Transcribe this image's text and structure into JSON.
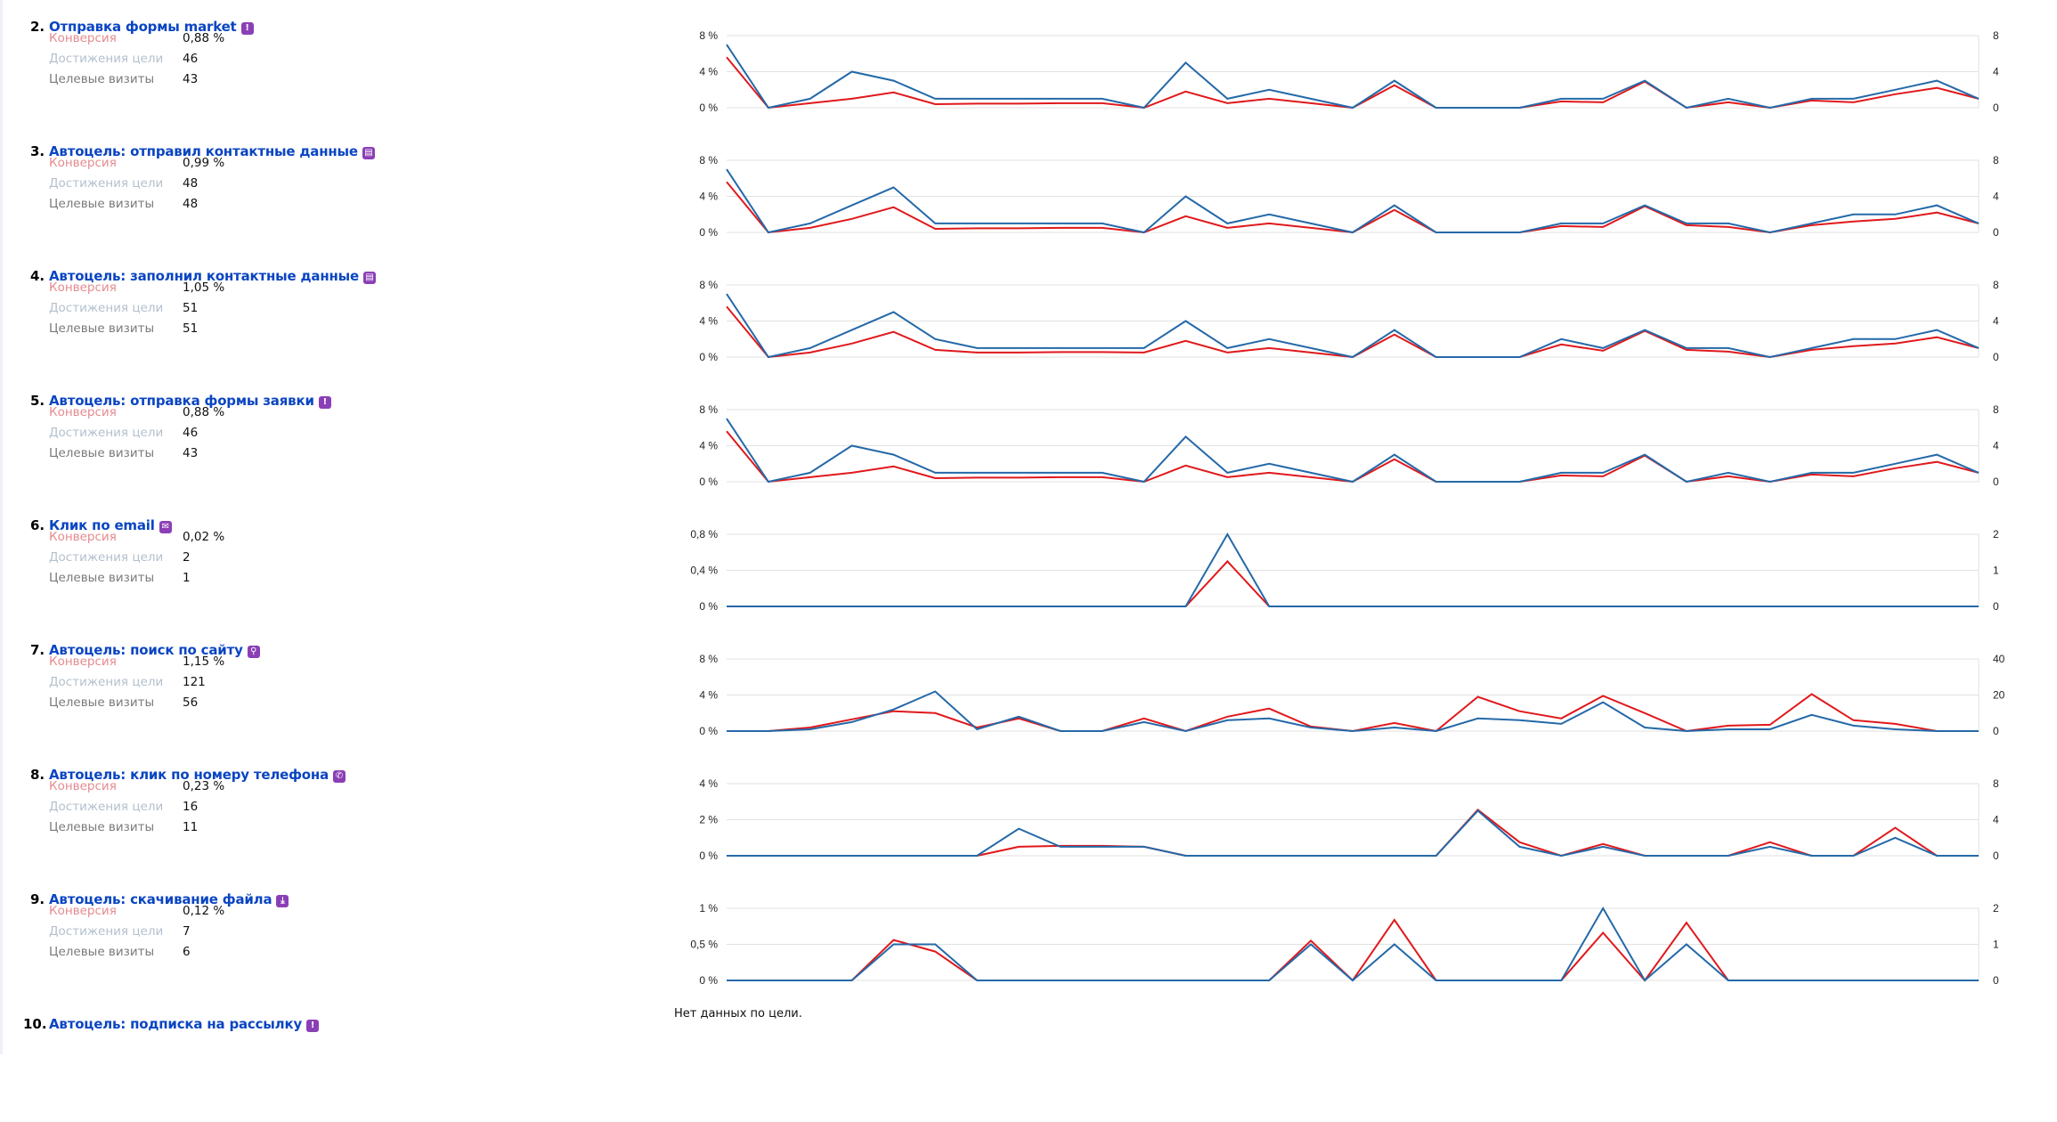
{
  "colors": {
    "title": "#0a45c2",
    "conversion_line": "#e0191c",
    "visits_line": "#2469a8",
    "icon": "#8b3fb6",
    "grid": "#e2e2e2"
  },
  "goals": [
    {
      "number": "2.",
      "title": "Отправка формы market",
      "icon": "exclamation-icon",
      "metrics": [
        {
          "label": "Конверсия",
          "value": "0,88 %"
        },
        {
          "label": "Достижения цели",
          "value": "46"
        },
        {
          "label": "Целевые визиты",
          "value": "43"
        }
      ]
    },
    {
      "number": "3.",
      "title": "Автоцель: отправил контактные данные",
      "icon": "contact-card-icon",
      "metrics": [
        {
          "label": "Конверсия",
          "value": "0,99 %"
        },
        {
          "label": "Достижения цели",
          "value": "48"
        },
        {
          "label": "Целевые визиты",
          "value": "48"
        }
      ]
    },
    {
      "number": "4.",
      "title": "Автоцель: заполнил контактные данные",
      "icon": "contact-card-icon",
      "metrics": [
        {
          "label": "Конверсия",
          "value": "1,05 %"
        },
        {
          "label": "Достижения цели",
          "value": "51"
        },
        {
          "label": "Целевые визиты",
          "value": "51"
        }
      ]
    },
    {
      "number": "5.",
      "title": "Автоцель: отправка формы заявки",
      "icon": "exclamation-icon",
      "metrics": [
        {
          "label": "Конверсия",
          "value": "0,88 %"
        },
        {
          "label": "Достижения цели",
          "value": "46"
        },
        {
          "label": "Целевые визиты",
          "value": "43"
        }
      ]
    },
    {
      "number": "6.",
      "title": "Клик по email",
      "icon": "email-icon",
      "metrics": [
        {
          "label": "Конверсия",
          "value": "0,02 %"
        },
        {
          "label": "Достижения цели",
          "value": "2"
        },
        {
          "label": "Целевые визиты",
          "value": "1"
        }
      ]
    },
    {
      "number": "7.",
      "title": "Автоцель: поиск по сайту",
      "icon": "search-icon",
      "metrics": [
        {
          "label": "Конверсия",
          "value": "1,15 %"
        },
        {
          "label": "Достижения цели",
          "value": "121"
        },
        {
          "label": "Целевые визиты",
          "value": "56"
        }
      ]
    },
    {
      "number": "8.",
      "title": "Автоцель: клик по номеру телефона",
      "icon": "phone-icon",
      "metrics": [
        {
          "label": "Конверсия",
          "value": "0,23 %"
        },
        {
          "label": "Достижения цели",
          "value": "16"
        },
        {
          "label": "Целевые визиты",
          "value": "11"
        }
      ]
    },
    {
      "number": "9.",
      "title": "Автоцель: скачивание файла",
      "icon": "download-icon",
      "metrics": [
        {
          "label": "Конверсия",
          "value": "0,12 %"
        },
        {
          "label": "Достижения цели",
          "value": "7"
        },
        {
          "label": "Целевые визиты",
          "value": "6"
        }
      ]
    },
    {
      "number": "10.",
      "title": "Автоцель: подписка на рассылку",
      "icon": "exclamation-icon",
      "metrics": [],
      "no_data": "Нет данных по цели."
    }
  ],
  "chart_data": [
    {
      "type": "line",
      "grid": true,
      "ylim_left": [
        0,
        8
      ],
      "ylim_right": [
        0,
        8
      ],
      "left_ticks": [
        "0 %",
        "4 %",
        "8 %"
      ],
      "right_ticks": [
        "0",
        "4",
        "8"
      ],
      "series": [
        {
          "axis": "left",
          "color": "#e0191c",
          "values": [
            5.6,
            0,
            0.5,
            1,
            1.7,
            0.4,
            0.45,
            0.45,
            0.5,
            0.5,
            0,
            1.8,
            0.5,
            1,
            0.5,
            0,
            2.5,
            0,
            0,
            0,
            0.7,
            0.6,
            2.9,
            0,
            0.6,
            0,
            0.8,
            0.6,
            1.5,
            2.2,
            1
          ]
        },
        {
          "axis": "right",
          "color": "#2469a8",
          "values": [
            7,
            0,
            1,
            4,
            3,
            1,
            1,
            1,
            1,
            1,
            0,
            5,
            1,
            2,
            1,
            0,
            3,
            0,
            0,
            0,
            1,
            1,
            3,
            0,
            1,
            0,
            1,
            1,
            2,
            3,
            1
          ]
        }
      ]
    },
    {
      "type": "line",
      "grid": true,
      "ylim_left": [
        0,
        8
      ],
      "ylim_right": [
        0,
        8
      ],
      "left_ticks": [
        "0 %",
        "4 %",
        "8 %"
      ],
      "right_ticks": [
        "0",
        "4",
        "8"
      ],
      "series": [
        {
          "axis": "left",
          "color": "#e0191c",
          "values": [
            5.6,
            0,
            0.5,
            1.5,
            2.8,
            0.4,
            0.45,
            0.45,
            0.5,
            0.5,
            0,
            1.8,
            0.5,
            1,
            0.5,
            0,
            2.5,
            0,
            0,
            0,
            0.7,
            0.6,
            2.9,
            0.8,
            0.6,
            0,
            0.8,
            1.2,
            1.5,
            2.2,
            1
          ]
        },
        {
          "axis": "right",
          "color": "#2469a8",
          "values": [
            7,
            0,
            1,
            3,
            5,
            1,
            1,
            1,
            1,
            1,
            0,
            4,
            1,
            2,
            1,
            0,
            3,
            0,
            0,
            0,
            1,
            1,
            3,
            1,
            1,
            0,
            1,
            2,
            2,
            3,
            1
          ]
        }
      ]
    },
    {
      "type": "line",
      "grid": true,
      "ylim_left": [
        0,
        8
      ],
      "ylim_right": [
        0,
        8
      ],
      "left_ticks": [
        "0 %",
        "4 %",
        "8 %"
      ],
      "right_ticks": [
        "0",
        "4",
        "8"
      ],
      "series": [
        {
          "axis": "left",
          "color": "#e0191c",
          "values": [
            5.6,
            0,
            0.5,
            1.5,
            2.8,
            0.8,
            0.5,
            0.5,
            0.55,
            0.55,
            0.5,
            1.8,
            0.5,
            1,
            0.5,
            0,
            2.5,
            0,
            0,
            0,
            1.4,
            0.7,
            2.9,
            0.8,
            0.6,
            0,
            0.8,
            1.2,
            1.5,
            2.2,
            1
          ]
        },
        {
          "axis": "right",
          "color": "#2469a8",
          "values": [
            7,
            0,
            1,
            3,
            5,
            2,
            1,
            1,
            1,
            1,
            1,
            4,
            1,
            2,
            1,
            0,
            3,
            0,
            0,
            0,
            2,
            1,
            3,
            1,
            1,
            0,
            1,
            2,
            2,
            3,
            1
          ]
        }
      ]
    },
    {
      "type": "line",
      "grid": true,
      "ylim_left": [
        0,
        8
      ],
      "ylim_right": [
        0,
        8
      ],
      "left_ticks": [
        "0 %",
        "4 %",
        "8 %"
      ],
      "right_ticks": [
        "0",
        "4",
        "8"
      ],
      "series": [
        {
          "axis": "left",
          "color": "#e0191c",
          "values": [
            5.6,
            0,
            0.5,
            1,
            1.7,
            0.4,
            0.45,
            0.45,
            0.5,
            0.5,
            0,
            1.8,
            0.5,
            1,
            0.5,
            0,
            2.5,
            0,
            0,
            0,
            0.7,
            0.6,
            2.9,
            0,
            0.6,
            0,
            0.8,
            0.6,
            1.5,
            2.2,
            1
          ]
        },
        {
          "axis": "right",
          "color": "#2469a8",
          "values": [
            7,
            0,
            1,
            4,
            3,
            1,
            1,
            1,
            1,
            1,
            0,
            5,
            1,
            2,
            1,
            0,
            3,
            0,
            0,
            0,
            1,
            1,
            3,
            0,
            1,
            0,
            1,
            1,
            2,
            3,
            1
          ]
        }
      ]
    },
    {
      "type": "line",
      "grid": true,
      "ylim_left": [
        0,
        0.8
      ],
      "ylim_right": [
        0,
        2
      ],
      "left_ticks": [
        "0 %",
        "0,4 %",
        "0,8 %"
      ],
      "right_ticks": [
        "0",
        "1",
        "2"
      ],
      "series": [
        {
          "axis": "left",
          "color": "#e0191c",
          "values": [
            0,
            0,
            0,
            0,
            0,
            0,
            0,
            0,
            0,
            0,
            0,
            0,
            0.5,
            0,
            0,
            0,
            0,
            0,
            0,
            0,
            0,
            0,
            0,
            0,
            0,
            0,
            0,
            0,
            0,
            0,
            0
          ]
        },
        {
          "axis": "right",
          "color": "#2469a8",
          "values": [
            0,
            0,
            0,
            0,
            0,
            0,
            0,
            0,
            0,
            0,
            0,
            0,
            2,
            0,
            0,
            0,
            0,
            0,
            0,
            0,
            0,
            0,
            0,
            0,
            0,
            0,
            0,
            0,
            0,
            0,
            0
          ]
        }
      ]
    },
    {
      "type": "line",
      "grid": true,
      "ylim_left": [
        0,
        8
      ],
      "ylim_right": [
        0,
        40
      ],
      "left_ticks": [
        "0 %",
        "4 %",
        "8 %"
      ],
      "right_ticks": [
        "0",
        "20",
        "40"
      ],
      "series": [
        {
          "axis": "left",
          "color": "#e0191c",
          "values": [
            0,
            0,
            0.4,
            1.3,
            2.2,
            2.0,
            0.4,
            1.4,
            0,
            0,
            1.4,
            0,
            1.6,
            2.5,
            0.5,
            0,
            0.9,
            0,
            3.8,
            2.2,
            1.4,
            3.9,
            2.0,
            0,
            0.6,
            0.7,
            4.1,
            1.2,
            0.8,
            0,
            0
          ]
        },
        {
          "axis": "right",
          "color": "#2469a8",
          "values": [
            0,
            0,
            1,
            5,
            12,
            22,
            1,
            8,
            0,
            0,
            5,
            0,
            6,
            7,
            2,
            0,
            2,
            0,
            7,
            6,
            4,
            16,
            2,
            0,
            1,
            1,
            9,
            3,
            1,
            0,
            0
          ]
        }
      ]
    },
    {
      "type": "line",
      "grid": true,
      "ylim_left": [
        0,
        4
      ],
      "ylim_right": [
        0,
        8
      ],
      "left_ticks": [
        "0 %",
        "2 %",
        "4 %"
      ],
      "right_ticks": [
        "0",
        "4",
        "8"
      ],
      "series": [
        {
          "axis": "left",
          "color": "#e0191c",
          "values": [
            0,
            0,
            0,
            0,
            0,
            0,
            0,
            0.5,
            0.55,
            0.55,
            0.5,
            0,
            0,
            0,
            0,
            0,
            0,
            0,
            2.55,
            0.75,
            0,
            0.65,
            0,
            0,
            0,
            0.75,
            0,
            0,
            1.55,
            0,
            0
          ]
        },
        {
          "axis": "right",
          "color": "#2469a8",
          "values": [
            0,
            0,
            0,
            0,
            0,
            0,
            0,
            3,
            1,
            1,
            1,
            0,
            0,
            0,
            0,
            0,
            0,
            0,
            5,
            1,
            0,
            1,
            0,
            0,
            0,
            1,
            0,
            0,
            2,
            0,
            0
          ]
        }
      ]
    },
    {
      "type": "line",
      "grid": true,
      "ylim_left": [
        0,
        1
      ],
      "ylim_right": [
        0,
        2
      ],
      "left_ticks": [
        "0 %",
        "0,5 %",
        "1 %"
      ],
      "right_ticks": [
        "0",
        "1",
        "2"
      ],
      "series": [
        {
          "axis": "left",
          "color": "#e0191c",
          "values": [
            0,
            0,
            0,
            0,
            0.56,
            0.4,
            0,
            0,
            0,
            0,
            0,
            0,
            0,
            0,
            0.55,
            0,
            0.84,
            0,
            0,
            0,
            0,
            0.66,
            0,
            0.8,
            0,
            0,
            0,
            0,
            0,
            0,
            0
          ]
        },
        {
          "axis": "right",
          "color": "#2469a8",
          "values": [
            0,
            0,
            0,
            0,
            1,
            1,
            0,
            0,
            0,
            0,
            0,
            0,
            0,
            0,
            1,
            0,
            1,
            0,
            0,
            0,
            0,
            2,
            0,
            1,
            0,
            0,
            0,
            0,
            0,
            0,
            0
          ]
        }
      ]
    }
  ]
}
